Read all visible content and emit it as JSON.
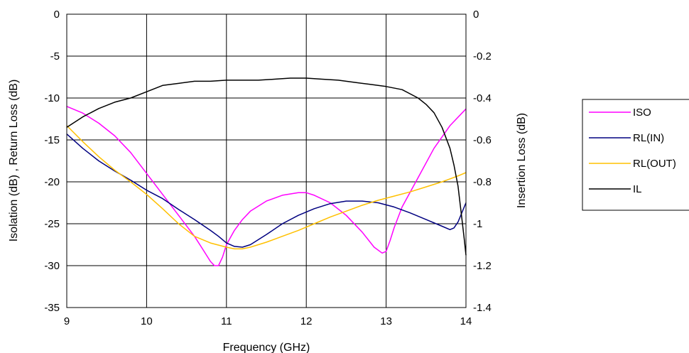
{
  "chart_data": {
    "type": "line",
    "xlabel": "Frequency (GHz)",
    "ylabel_left": "Isolation (dB) , Return Loss (dB)",
    "ylabel_right": "Insertion Loss (dB)",
    "xlim": [
      9,
      14
    ],
    "ylim_left": [
      -35,
      0
    ],
    "ylim_right": [
      -1.4,
      0
    ],
    "xticks": [
      "9",
      "10",
      "11",
      "12",
      "13",
      "14"
    ],
    "yticks_left": [
      "0",
      "-5",
      "-10",
      "-15",
      "-20",
      "-25",
      "-30",
      "-35"
    ],
    "yticks_right": [
      "0",
      "-0.2",
      "-0.4",
      "-0.6",
      "-0.8",
      "-1",
      "-1.2",
      "-1.4"
    ],
    "grid": true,
    "legend_position": "right",
    "series": [
      {
        "name": "ISO",
        "color": "#ff00ff",
        "axis": "left",
        "x": [
          9.0,
          9.2,
          9.4,
          9.6,
          9.8,
          10.0,
          10.2,
          10.4,
          10.6,
          10.7,
          10.8,
          10.85,
          10.9,
          10.95,
          11.0,
          11.1,
          11.2,
          11.3,
          11.5,
          11.7,
          11.9,
          12.0,
          12.1,
          12.3,
          12.5,
          12.7,
          12.85,
          12.95,
          13.0,
          13.05,
          13.1,
          13.2,
          13.4,
          13.6,
          13.8,
          14.0
        ],
        "y": [
          -11.0,
          -11.8,
          -13.0,
          -14.5,
          -16.5,
          -19.0,
          -21.5,
          -24.0,
          -26.5,
          -28.0,
          -29.5,
          -30.0,
          -30.0,
          -29.0,
          -27.5,
          -25.8,
          -24.5,
          -23.5,
          -22.3,
          -21.6,
          -21.3,
          -21.3,
          -21.6,
          -22.5,
          -24.0,
          -26.0,
          -27.8,
          -28.5,
          -28.3,
          -27.0,
          -25.5,
          -23.0,
          -19.5,
          -16.0,
          -13.3,
          -11.3
        ]
      },
      {
        "name": "RL(IN)",
        "color": "#000080",
        "axis": "left",
        "x": [
          9.0,
          9.2,
          9.4,
          9.6,
          9.8,
          10.0,
          10.2,
          10.4,
          10.6,
          10.8,
          10.9,
          11.0,
          11.1,
          11.2,
          11.3,
          11.5,
          11.7,
          11.9,
          12.1,
          12.3,
          12.5,
          12.7,
          12.9,
          13.1,
          13.3,
          13.5,
          13.7,
          13.8,
          13.85,
          13.9,
          14.0
        ],
        "y": [
          -14.3,
          -16.0,
          -17.5,
          -18.7,
          -19.8,
          -21.0,
          -22.0,
          -23.3,
          -24.5,
          -25.8,
          -26.5,
          -27.3,
          -27.7,
          -27.8,
          -27.5,
          -26.3,
          -25.0,
          -24.0,
          -23.2,
          -22.6,
          -22.3,
          -22.3,
          -22.5,
          -23.0,
          -23.7,
          -24.5,
          -25.3,
          -25.7,
          -25.5,
          -24.8,
          -22.5
        ]
      },
      {
        "name": "RL(OUT)",
        "color": "#ffc000",
        "axis": "left",
        "x": [
          9.0,
          9.2,
          9.4,
          9.6,
          9.8,
          10.0,
          10.2,
          10.4,
          10.6,
          10.8,
          11.0,
          11.1,
          11.2,
          11.3,
          11.5,
          11.7,
          11.9,
          12.1,
          12.3,
          12.5,
          12.7,
          12.9,
          13.1,
          13.3,
          13.5,
          13.7,
          13.9,
          14.0
        ],
        "y": [
          -13.3,
          -15.2,
          -17.0,
          -18.6,
          -20.0,
          -21.5,
          -23.2,
          -25.0,
          -26.5,
          -27.3,
          -27.8,
          -28.0,
          -28.0,
          -27.8,
          -27.2,
          -26.5,
          -25.8,
          -25.0,
          -24.2,
          -23.5,
          -22.8,
          -22.2,
          -21.7,
          -21.2,
          -20.6,
          -20.0,
          -19.3,
          -18.9
        ]
      },
      {
        "name": "IL",
        "color": "#000000",
        "axis": "right",
        "x": [
          9.0,
          9.2,
          9.4,
          9.6,
          9.8,
          10.0,
          10.2,
          10.4,
          10.6,
          10.8,
          11.0,
          11.2,
          11.4,
          11.6,
          11.8,
          12.0,
          12.2,
          12.4,
          12.6,
          12.8,
          13.0,
          13.2,
          13.4,
          13.5,
          13.6,
          13.7,
          13.8,
          13.85,
          13.9,
          13.95,
          13.98,
          14.0
        ],
        "y": [
          -0.54,
          -0.49,
          -0.45,
          -0.42,
          -0.4,
          -0.37,
          -0.34,
          -0.33,
          -0.32,
          -0.32,
          -0.315,
          -0.315,
          -0.315,
          -0.31,
          -0.305,
          -0.305,
          -0.31,
          -0.315,
          -0.325,
          -0.335,
          -0.345,
          -0.36,
          -0.4,
          -0.43,
          -0.47,
          -0.54,
          -0.64,
          -0.72,
          -0.82,
          -0.98,
          -1.08,
          -1.15
        ]
      }
    ]
  }
}
